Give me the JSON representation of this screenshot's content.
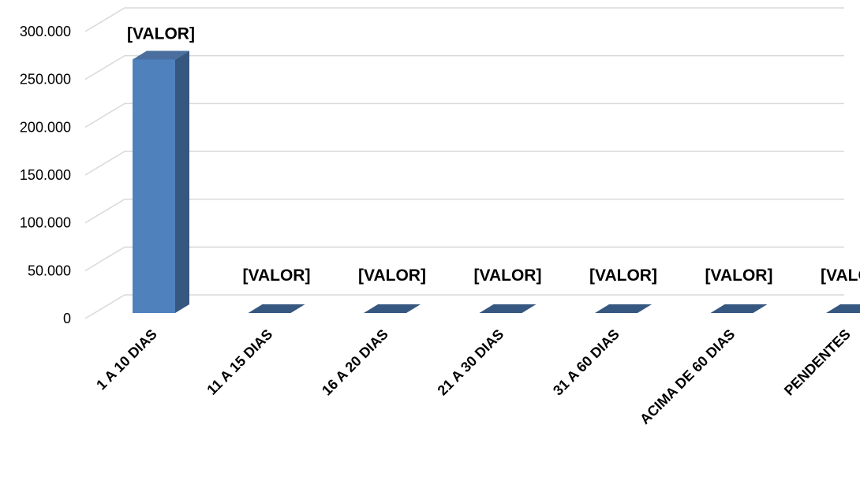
{
  "chart_data": {
    "type": "bar",
    "categories": [
      "1 A 10 DIAS",
      "11 A 15 DIAS",
      "16 A 20 DIAS",
      "21 A 30 DIAS",
      "31 A 60 DIAS",
      "ACIMA DE 60 DIAS",
      "PENDENTES"
    ],
    "values": [
      265000,
      0,
      0,
      0,
      0,
      0,
      0
    ],
    "data_labels": [
      "[VALOR]",
      "[VALOR]",
      "[VALOR]",
      "[VALOR]",
      "[VALOR]",
      "[VALOR]",
      "[VALOR]"
    ],
    "yticks": [
      "0",
      "50.000",
      "100.000",
      "150.000",
      "200.000",
      "250.000",
      "300.000"
    ],
    "ylim": [
      0,
      300000
    ],
    "grid": true,
    "legend": "none",
    "three_d": true,
    "colors": {
      "bar_front": "#4F81BD",
      "bar_side": "#36577F",
      "bar_top": "#4A6F9E",
      "grid": "#D9D9D9"
    }
  }
}
